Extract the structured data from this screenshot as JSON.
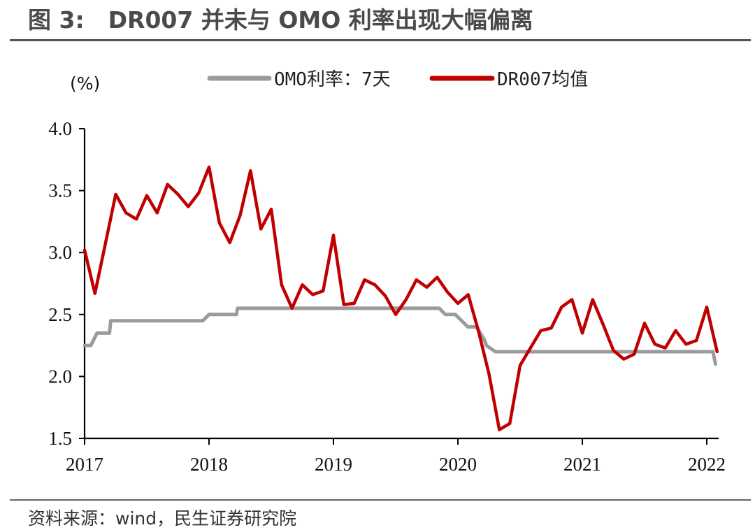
{
  "title": {
    "number": "图 3:",
    "text": "DR007 并未与 OMO 利率出现大幅偏离"
  },
  "source": "资料来源：wind，民生证券研究院",
  "colors": {
    "omo": "#9b9b9b",
    "dr007": "#c00000",
    "axis": "#000000"
  },
  "chart_data": {
    "type": "line",
    "title": "DR007 并未与 OMO 利率出现大幅偏离",
    "ylabel": "(%)",
    "xlabel": "",
    "ylim": [
      1.5,
      4.0
    ],
    "xlim": [
      2017.0,
      2022.2
    ],
    "yticks": [
      "1.5",
      "2.0",
      "2.5",
      "3.0",
      "3.5",
      "4.0"
    ],
    "xticks": [
      "2017",
      "2018",
      "2019",
      "2020",
      "2021",
      "2022"
    ],
    "legend_position": "top",
    "series": [
      {
        "name": "OMO利率：7天",
        "color": "#9b9b9b",
        "step": true,
        "x": [
          2017.0,
          2017.05,
          2017.1,
          2017.2,
          2017.21,
          2017.95,
          2018.0,
          2018.22,
          2018.23,
          2019.25,
          2019.85,
          2019.9,
          2019.98,
          2020.08,
          2020.15,
          2020.21,
          2020.23,
          2020.3,
          2022.05,
          2022.07
        ],
        "values": [
          2.25,
          2.25,
          2.35,
          2.35,
          2.45,
          2.45,
          2.5,
          2.5,
          2.55,
          2.55,
          2.55,
          2.5,
          2.5,
          2.4,
          2.4,
          2.3,
          2.25,
          2.2,
          2.2,
          2.1
        ]
      },
      {
        "name": "DR007均值",
        "color": "#c00000",
        "step": false,
        "x": [
          2017.0,
          2017.083,
          2017.167,
          2017.25,
          2017.333,
          2017.417,
          2017.5,
          2017.583,
          2017.667,
          2017.75,
          2017.833,
          2017.917,
          2018.0,
          2018.083,
          2018.167,
          2018.25,
          2018.333,
          2018.417,
          2018.5,
          2018.583,
          2018.667,
          2018.75,
          2018.833,
          2018.917,
          2019.0,
          2019.083,
          2019.167,
          2019.25,
          2019.333,
          2019.417,
          2019.5,
          2019.583,
          2019.667,
          2019.75,
          2019.833,
          2019.917,
          2020.0,
          2020.083,
          2020.167,
          2020.25,
          2020.333,
          2020.417,
          2020.5,
          2020.583,
          2020.667,
          2020.75,
          2020.833,
          2020.917,
          2021.0,
          2021.083,
          2021.167,
          2021.25,
          2021.333,
          2021.417,
          2021.5,
          2021.583,
          2021.667,
          2021.75,
          2021.833,
          2021.917,
          2022.0,
          2022.083
        ],
        "values": [
          3.02,
          2.67,
          3.07,
          3.47,
          3.32,
          3.27,
          3.46,
          3.32,
          3.55,
          3.47,
          3.37,
          3.48,
          3.69,
          3.24,
          3.08,
          3.3,
          3.66,
          3.19,
          3.35,
          2.74,
          2.55,
          2.74,
          2.66,
          2.69,
          3.14,
          2.58,
          2.59,
          2.78,
          2.74,
          2.65,
          2.5,
          2.62,
          2.78,
          2.72,
          2.8,
          2.68,
          2.59,
          2.66,
          2.36,
          2.02,
          1.57,
          1.62,
          2.09,
          2.23,
          2.37,
          2.39,
          2.56,
          2.62,
          2.35,
          2.62,
          2.42,
          2.21,
          2.14,
          2.18,
          2.43,
          2.26,
          2.23,
          2.37,
          2.26,
          2.29,
          2.56,
          2.2
        ]
      }
    ]
  }
}
